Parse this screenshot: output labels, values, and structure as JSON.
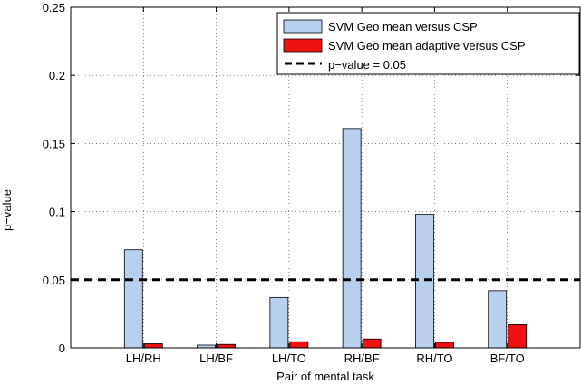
{
  "chart_data": {
    "type": "bar",
    "xlabel": "Pair of mental task",
    "ylabel": "p−value",
    "categories": [
      "LH/RH",
      "LH/BF",
      "LH/TO",
      "RH/BF",
      "RH/TO",
      "BF/TO"
    ],
    "ylim": [
      0,
      0.25
    ],
    "yticks": [
      0,
      0.05,
      0.1,
      0.15,
      0.2,
      0.25
    ],
    "ytick_labels": [
      "0",
      "0.05",
      "0.1",
      "0.15",
      "0.2",
      "0.25"
    ],
    "grid": true,
    "legend_position": "top-right",
    "series": [
      {
        "name": "SVM Geo mean versus CSP",
        "color": "#b8d0ee",
        "values": [
          0.072,
          0.002,
          0.037,
          0.161,
          0.098,
          0.042
        ]
      },
      {
        "name": "SVM Geo mean adaptive versus CSP",
        "color": "#ee1111",
        "values": [
          0.003,
          0.0025,
          0.0045,
          0.0065,
          0.004,
          0.017
        ]
      }
    ],
    "reference_line": {
      "name": "p−value = 0.05",
      "value": 0.05,
      "style": "dashed",
      "color": "#000000"
    }
  }
}
